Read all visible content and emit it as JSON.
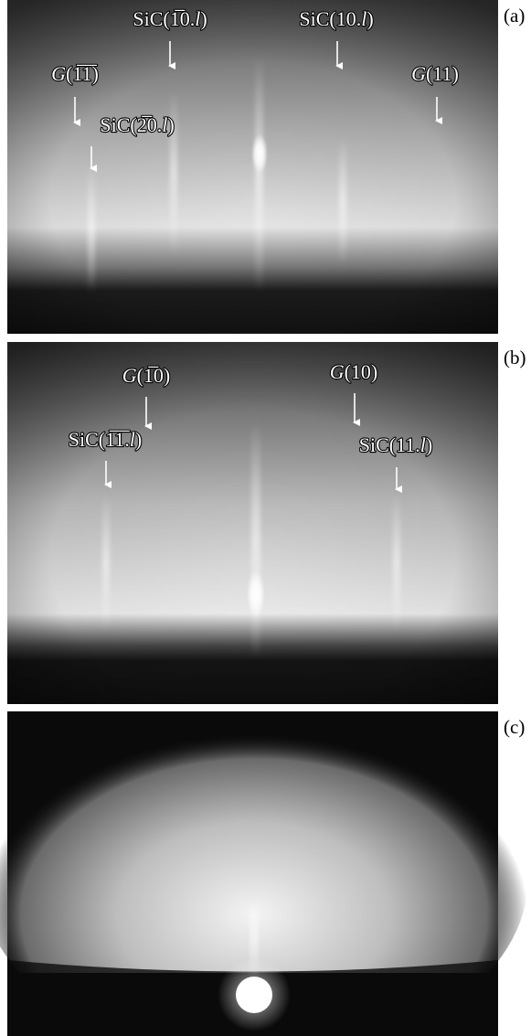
{
  "panels": [
    {
      "label": "(a)",
      "annotations": [
        {
          "label": [
            {
              "text": "SiC("
            },
            {
              "text": "1̅0."
            },
            {
              "text": "l",
              "italic": true
            },
            {
              "text": ")"
            }
          ]
        },
        {
          "label": [
            {
              "text": "SiC(10."
            },
            {
              "text": "l",
              "italic": true
            },
            {
              "text": ")"
            }
          ]
        },
        {
          "label": [
            {
              "text": "G",
              "italic": true
            },
            {
              "text": "(1̅1̅)"
            }
          ]
        },
        {
          "label": [
            {
              "text": "SiC("
            },
            {
              "text": "2̅0."
            },
            {
              "text": "l",
              "italic": true
            },
            {
              "text": ")"
            }
          ]
        },
        {
          "label": [
            {
              "text": "G",
              "italic": true
            },
            {
              "text": "(11)"
            }
          ]
        }
      ]
    },
    {
      "label": "(b)",
      "annotations": [
        {
          "label": [
            {
              "text": "G",
              "italic": true
            },
            {
              "text": "(1̅0)"
            }
          ]
        },
        {
          "label": [
            {
              "text": "G",
              "italic": true
            },
            {
              "text": "(10)"
            }
          ]
        },
        {
          "label": [
            {
              "text": "SiC("
            },
            {
              "text": "1̅1̅."
            },
            {
              "text": "l",
              "italic": true
            },
            {
              "text": ")"
            }
          ]
        },
        {
          "label": [
            {
              "text": "SiC(11."
            },
            {
              "text": "l",
              "italic": true
            },
            {
              "text": ")"
            }
          ]
        }
      ]
    },
    {
      "label": "(c)",
      "annotations": []
    }
  ]
}
